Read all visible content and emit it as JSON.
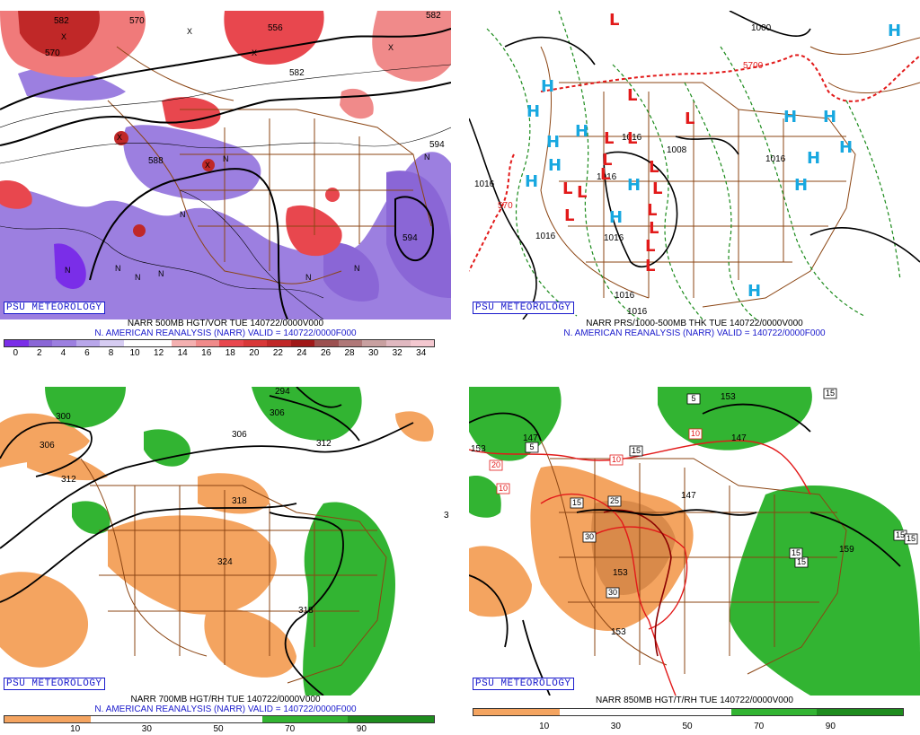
{
  "credit_label": "PSU METEOROLOGY",
  "colors": {
    "vort_purple": "#8a66d6",
    "vort_red": "#e8474e",
    "dry_orange": "#f4a460",
    "moist_green": "#32b432",
    "high_blue": "#18a8e0",
    "low_red": "#e21a1a",
    "borders": "#8b4513"
  },
  "panels": [
    {
      "caption_line1": "NARR 500MB HGT/VOR TUE 140722/0000V000",
      "caption_line2": "N. AMERICAN REANALYSIS (NARR) VALID = 140722/0000F000",
      "colorbar_ticks": [
        "0",
        "2",
        "4",
        "6",
        "8",
        "10",
        "12",
        "14",
        "16",
        "18",
        "20",
        "22",
        "24",
        "26",
        "28",
        "30",
        "32",
        "34"
      ],
      "contour_labels": [
        "570",
        "556",
        "582",
        "594",
        "594",
        "570",
        "588",
        "582",
        "582"
      ],
      "x_markers": [
        "X",
        "X",
        "X",
        "X",
        "X",
        "X"
      ],
      "n_markers": [
        "N",
        "N",
        "N",
        "N",
        "N",
        "N",
        "N",
        "N",
        "N"
      ]
    },
    {
      "caption_line1": "NARR PRS/1000-500MB THK TUE 140722/0000V000",
      "caption_line2": "N. AMERICAN REANALYSIS (NARR) VALID = 140722/0000F000",
      "contour_labels": [
        "1000",
        "5700",
        "1016",
        "1016",
        "1008",
        "1016",
        "1016",
        "1016",
        "1016",
        "1016",
        "1016",
        "570"
      ],
      "highs": [
        "H",
        "H",
        "H",
        "H",
        "H",
        "H",
        "H",
        "H",
        "H",
        "H",
        "H",
        "H",
        "H",
        "H",
        "H"
      ],
      "lows": [
        "L",
        "L",
        "L",
        "L",
        "L",
        "L",
        "L",
        "L",
        "L",
        "L",
        "L",
        "L",
        "L",
        "L",
        "L",
        "L"
      ]
    },
    {
      "caption_line1": "NARR 700MB HGT/RH TUE 140722/0000V000",
      "caption_line2": "N. AMERICAN REANALYSIS (NARR) VALID = 140722/0000F000",
      "colorbar_ticks": [
        "10",
        "30",
        "50",
        "70",
        "90"
      ],
      "contour_labels": [
        "300",
        "306",
        "312",
        "306",
        "306",
        "312",
        "318",
        "324",
        "318",
        "294",
        "3"
      ]
    },
    {
      "caption_line1": "NARR 850MB HGT/T/RH TUE 140722/0000V000",
      "colorbar_ticks": [
        "10",
        "30",
        "50",
        "70",
        "90"
      ],
      "contour_labels": [
        "147",
        "153",
        "147",
        "147",
        "153",
        "153",
        "159",
        "153"
      ],
      "temp_boxes": [
        "15",
        "5",
        "15",
        "10",
        "20",
        "10",
        "10",
        "15",
        "25",
        "30",
        "30",
        "15",
        "15",
        "15",
        "5",
        "15"
      ]
    }
  ]
}
